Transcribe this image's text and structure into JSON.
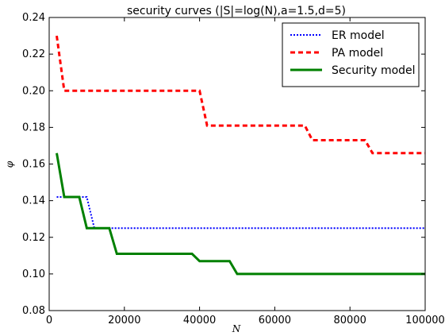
{
  "chart_data": {
    "type": "line",
    "title": "security curves (|S|=log(N),a=1.5,d=5)",
    "xlabel": "N",
    "ylabel": "φ",
    "xlim": [
      0,
      100000
    ],
    "ylim": [
      0.08,
      0.24
    ],
    "xticks": [
      0,
      20000,
      40000,
      60000,
      80000,
      100000
    ],
    "xtick_labels": [
      "0",
      "20000",
      "40000",
      "60000",
      "80000",
      "100000"
    ],
    "yticks": [
      0.08,
      0.1,
      0.12,
      0.14,
      0.16,
      0.18,
      0.2,
      0.22,
      0.24
    ],
    "ytick_labels": [
      "0.08",
      "0.10",
      "0.12",
      "0.14",
      "0.16",
      "0.18",
      "0.20",
      "0.22",
      "0.24"
    ],
    "grid": false,
    "legend_position": "top-right",
    "series": [
      {
        "name": "ER model",
        "color": "#0000ff",
        "style": "dotted",
        "x": [
          2000,
          10000,
          12000,
          14000,
          100000
        ],
        "y": [
          0.142,
          0.142,
          0.125,
          0.125,
          0.125
        ]
      },
      {
        "name": "PA model",
        "color": "#ff0000",
        "style": "dashed",
        "x": [
          2000,
          4000,
          40000,
          42000,
          68000,
          70000,
          84000,
          86000,
          100000
        ],
        "y": [
          0.23,
          0.2,
          0.2,
          0.181,
          0.181,
          0.173,
          0.173,
          0.166,
          0.166
        ]
      },
      {
        "name": "Security model",
        "color": "#008000",
        "style": "solid",
        "x": [
          2000,
          4000,
          8000,
          10000,
          16000,
          18000,
          38000,
          40000,
          48000,
          50000,
          100000
        ],
        "y": [
          0.166,
          0.142,
          0.142,
          0.125,
          0.125,
          0.111,
          0.111,
          0.107,
          0.107,
          0.1,
          0.1
        ]
      }
    ]
  }
}
